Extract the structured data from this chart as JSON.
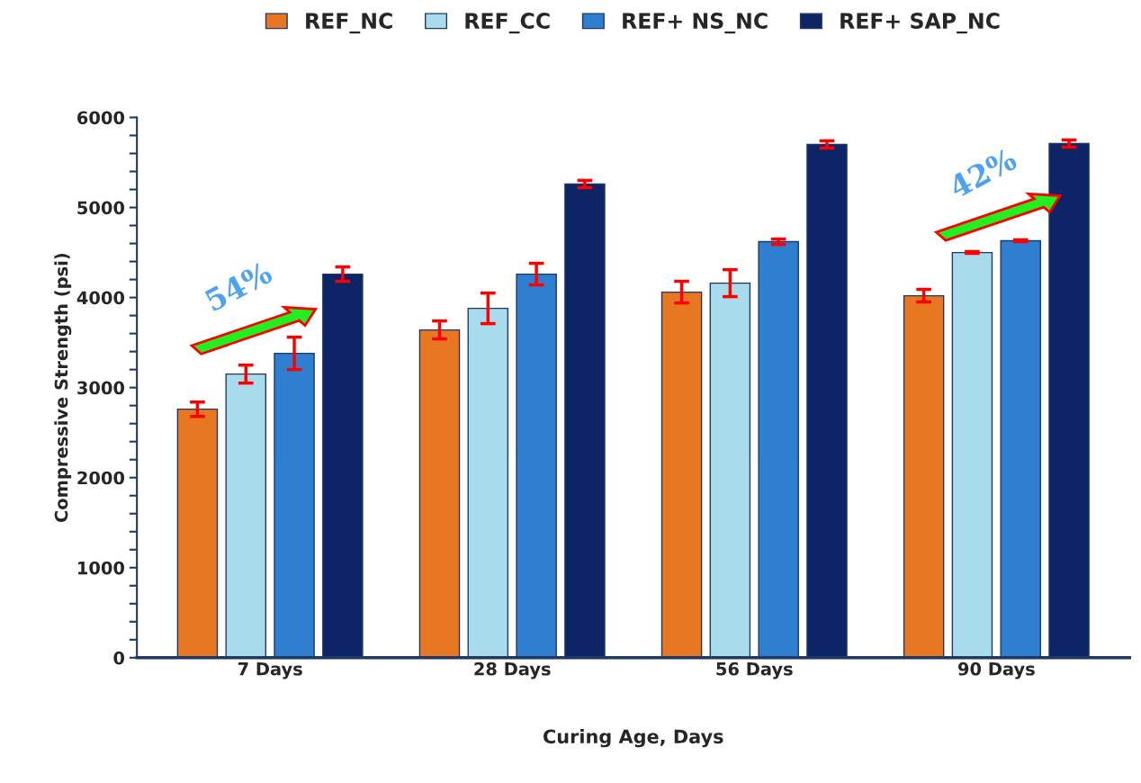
{
  "chart_data": {
    "type": "bar",
    "xlabel": "Curing Age, Days",
    "ylabel": "Compressive Strength (psi)",
    "categories": [
      "7 Days",
      "28 Days",
      "56 Days",
      "90 Days"
    ],
    "series": [
      {
        "name": "REF_NC",
        "color": "#e87722",
        "values": [
          2760,
          3640,
          4060,
          4020
        ],
        "errors": [
          80,
          100,
          120,
          70
        ]
      },
      {
        "name": "REF_CC",
        "color": "#a8dcec",
        "values": [
          3150,
          3880,
          4160,
          4500
        ],
        "errors": [
          100,
          170,
          150,
          10
        ]
      },
      {
        "name": "REF+ NS_NC",
        "color": "#2f7fd0",
        "values": [
          3380,
          4260,
          4620,
          4630
        ],
        "errors": [
          180,
          120,
          30,
          10
        ]
      },
      {
        "name": "REF+ SAP_NC",
        "color": "#0d2466",
        "values": [
          4260,
          5260,
          5700,
          5710
        ],
        "errors": [
          80,
          40,
          40,
          40
        ]
      }
    ],
    "ylim": [
      0,
      6000
    ],
    "yticks": [
      0,
      {
        "value": 200,
        "label": null
      },
      {
        "value": 400,
        "label": null
      },
      {
        "value": 600,
        "label": null
      },
      {
        "value": 800,
        "label": null
      },
      1000,
      {
        "value": 1200,
        "label": null
      },
      {
        "value": 1400,
        "label": null
      },
      {
        "value": 1600,
        "label": null
      },
      {
        "value": 1800,
        "label": null
      },
      2000,
      {
        "value": 2200,
        "label": null
      },
      {
        "value": 2400,
        "label": null
      },
      {
        "value": 2600,
        "label": null
      },
      {
        "value": 2800,
        "label": null
      },
      3000,
      {
        "value": 3200,
        "label": null
      },
      {
        "value": 3400,
        "label": null
      },
      {
        "value": 3600,
        "label": null
      },
      {
        "value": 3800,
        "label": null
      },
      4000,
      {
        "value": 4200,
        "label": null
      },
      {
        "value": 4400,
        "label": null
      },
      {
        "value": 4600,
        "label": null
      },
      {
        "value": 4800,
        "label": null
      },
      5000,
      {
        "value": 5200,
        "label": null
      },
      {
        "value": 5400,
        "label": null
      },
      {
        "value": 5600,
        "label": null
      },
      {
        "value": 5800,
        "label": null
      },
      6000
    ],
    "annotations": [
      "54%",
      "42%"
    ],
    "grid": false,
    "legend": "top"
  }
}
